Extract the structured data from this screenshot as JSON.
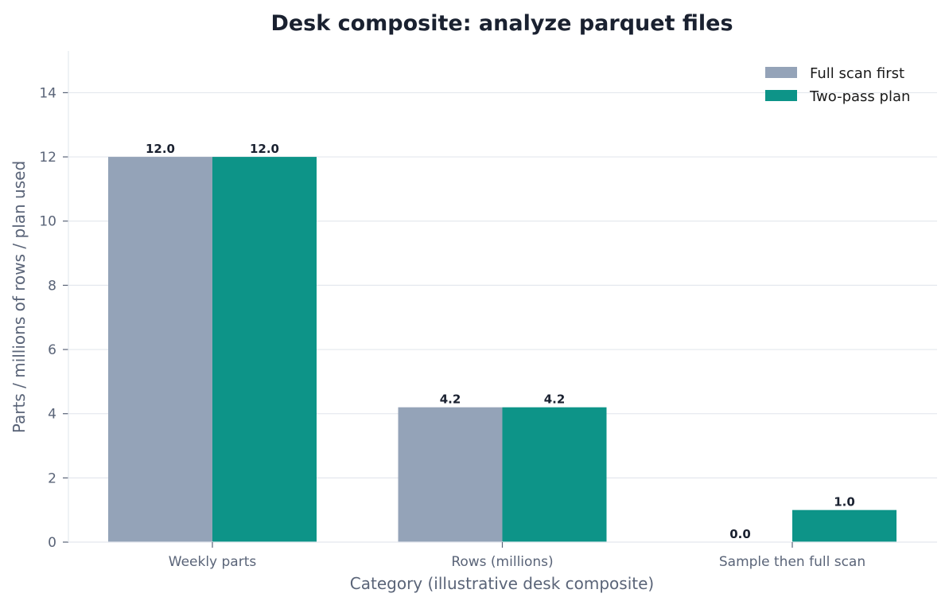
{
  "chart_data": {
    "type": "bar",
    "title": "Desk composite: analyze parquet files",
    "xlabel": "Category (illustrative desk composite)",
    "ylabel": "Parts / millions of rows / plan used",
    "categories": [
      "Weekly parts",
      "Rows (millions)",
      "Sample then full scan"
    ],
    "series": [
      {
        "name": "Full scan first",
        "color": "#94a3b8",
        "values": [
          12.0,
          4.2,
          0.0
        ],
        "labels": [
          "12.0",
          "4.2",
          "0.0"
        ]
      },
      {
        "name": "Two-pass plan",
        "color": "#0d9488",
        "values": [
          12.0,
          4.2,
          1.0
        ],
        "labels": [
          "12.0",
          "4.2",
          "1.0"
        ]
      }
    ],
    "ylim": [
      0,
      15.3
    ],
    "yticks": [
      0,
      2,
      4,
      6,
      8,
      10,
      12,
      14
    ],
    "grid": "horizontal",
    "legend_position": "top-right"
  }
}
